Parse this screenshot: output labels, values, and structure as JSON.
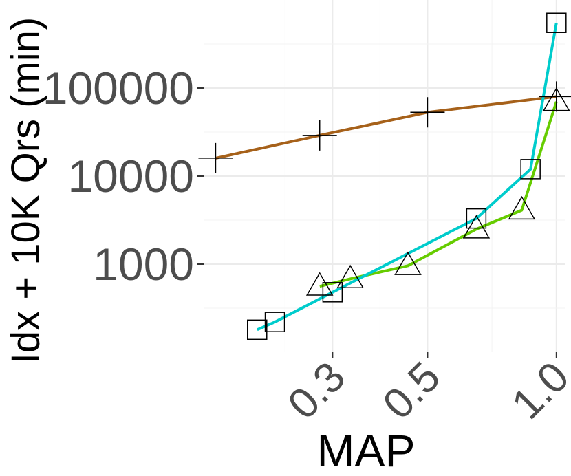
{
  "chart_data": {
    "type": "line",
    "title": "",
    "xlabel": "MAP",
    "ylabel": "Idx + 10K Qrs (min)",
    "x_scale": "log",
    "y_scale": "log",
    "xlim": [
      0.15,
      1.05
    ],
    "ylim": [
      100,
      1000000
    ],
    "x_ticks": [
      {
        "value": 0.3,
        "label": "0.3"
      },
      {
        "value": 0.5,
        "label": "0.5"
      },
      {
        "value": 1.0,
        "label": "1.0"
      }
    ],
    "y_ticks": [
      {
        "value": 1000,
        "label": "1000"
      },
      {
        "value": 10000,
        "label": "10000"
      },
      {
        "value": 100000,
        "label": "100000"
      }
    ],
    "grid": true,
    "legend": "none",
    "series": [
      {
        "color": "#a6611a",
        "marker": "plus",
        "x": [
          0.16,
          0.28,
          0.5,
          1.0
        ],
        "y": [
          16000,
          29000,
          53000,
          80000
        ]
      },
      {
        "color": "#66cc00",
        "marker": "triangle",
        "x": [
          0.28,
          0.33,
          0.45,
          0.65,
          0.83,
          1.0
        ],
        "y": [
          560,
          680,
          960,
          2500,
          4100,
          70000
        ]
      },
      {
        "color": "#00cccc",
        "marker": "square",
        "x": [
          0.2,
          0.22,
          0.3,
          0.65,
          0.87,
          1.0
        ],
        "y": [
          180,
          220,
          480,
          3300,
          12000,
          550000
        ]
      }
    ]
  }
}
